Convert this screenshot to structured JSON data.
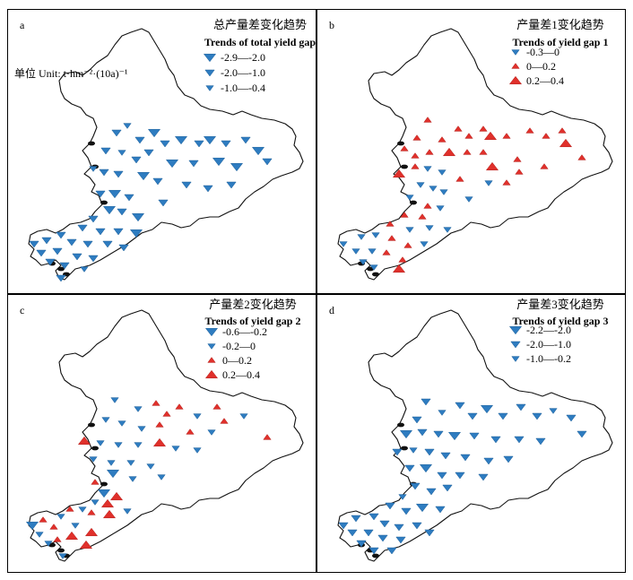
{
  "colors": {
    "blue": "#2e7cc0",
    "red": "#e0302b",
    "outline": "#111111"
  },
  "panels": [
    {
      "id": "a",
      "letter": "a",
      "title_cn": "总产量差变化趋势",
      "title_en": "Trends of total yield gap",
      "unit": "单位 Unit: t·hm⁻²·(10a)⁻¹",
      "legend": [
        {
          "label": "-2.9—-2.0",
          "color": "blue",
          "shape": "down",
          "size": "large"
        },
        {
          "label": "-2.0—-1.0",
          "color": "blue",
          "shape": "down",
          "size": "medium"
        },
        {
          "label": "-1.0—-0.4",
          "color": "blue",
          "shape": "down",
          "size": "small"
        }
      ]
    },
    {
      "id": "b",
      "letter": "b",
      "title_cn": "产量差1变化趋势",
      "title_en": "Trends of yield gap 1",
      "legend": [
        {
          "label": "-0.3—0",
          "color": "blue",
          "shape": "down",
          "size": "small"
        },
        {
          "label": "0—0.2",
          "color": "red",
          "shape": "up",
          "size": "small"
        },
        {
          "label": "0.2—0.4",
          "color": "red",
          "shape": "up",
          "size": "large"
        }
      ]
    },
    {
      "id": "c",
      "letter": "c",
      "title_cn": "产量差2变化趋势",
      "title_en": "Trends of yield gap 2",
      "legend": [
        {
          "label": "-0.6—-0.2",
          "color": "blue",
          "shape": "down",
          "size": "large"
        },
        {
          "label": "-0.2—0",
          "color": "blue",
          "shape": "down",
          "size": "small"
        },
        {
          "label": "0—0.2",
          "color": "red",
          "shape": "up",
          "size": "small"
        },
        {
          "label": "0.2—0.4",
          "color": "red",
          "shape": "up",
          "size": "large"
        }
      ]
    },
    {
      "id": "d",
      "letter": "d",
      "title_cn": "产量差3变化趋势",
      "title_en": "Trends of yield gap 3",
      "legend": [
        {
          "label": "-2.2—-2.0",
          "color": "blue",
          "shape": "down",
          "size": "large"
        },
        {
          "label": "-2.0—-1.0",
          "color": "blue",
          "shape": "down",
          "size": "medium"
        },
        {
          "label": "-1.0—-0.2",
          "color": "blue",
          "shape": "down",
          "size": "small"
        }
      ]
    }
  ]
}
